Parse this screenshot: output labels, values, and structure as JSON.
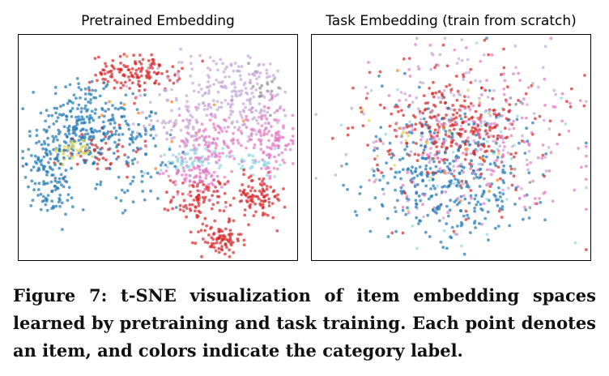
{
  "figure": {
    "caption": "Figure 7: t-SNE visualization of item embedding spaces learned by pretraining and task training. Each point denotes an item, and colors indicate the category label."
  },
  "chart_data": [
    {
      "type": "scatter",
      "title": "Pretrained Embedding",
      "xlabel": "",
      "ylabel": "",
      "axis_ticks": false,
      "grid": false,
      "legend": "none",
      "xlim": [
        0,
        1
      ],
      "ylim": [
        0,
        1
      ],
      "point_opacity": 0.7,
      "clusters": [
        {
          "category": "blue",
          "color": "#1f77b4",
          "count": 150,
          "cx": 0.22,
          "cy": 0.62,
          "sx": 0.065,
          "sy": 0.11
        },
        {
          "category": "blue",
          "color": "#1f77b4",
          "count": 130,
          "cx": 0.33,
          "cy": 0.57,
          "sx": 0.09,
          "sy": 0.07
        },
        {
          "category": "blue",
          "color": "#1f77b4",
          "count": 90,
          "cx": 0.1,
          "cy": 0.45,
          "sx": 0.04,
          "sy": 0.07
        },
        {
          "category": "blue",
          "color": "#1f77b4",
          "count": 50,
          "cx": 0.12,
          "cy": 0.28,
          "sx": 0.04,
          "sy": 0.05
        },
        {
          "category": "blue",
          "color": "#1f77b4",
          "count": 45,
          "cx": 0.44,
          "cy": 0.36,
          "sx": 0.07,
          "sy": 0.06
        },
        {
          "category": "red",
          "color": "#d62728",
          "count": 130,
          "cx": 0.42,
          "cy": 0.83,
          "sx": 0.08,
          "sy": 0.04
        },
        {
          "category": "red",
          "color": "#d62728",
          "count": 90,
          "cx": 0.65,
          "cy": 0.27,
          "sx": 0.05,
          "sy": 0.05
        },
        {
          "category": "red",
          "color": "#d62728",
          "count": 95,
          "cx": 0.86,
          "cy": 0.28,
          "sx": 0.05,
          "sy": 0.05
        },
        {
          "category": "red",
          "color": "#d62728",
          "count": 80,
          "cx": 0.72,
          "cy": 0.09,
          "sx": 0.04,
          "sy": 0.035
        },
        {
          "category": "red",
          "color": "#d62728",
          "count": 50,
          "cx": 0.3,
          "cy": 0.49,
          "sx": 0.07,
          "sy": 0.06
        },
        {
          "category": "lavender",
          "color": "#c5a6d6",
          "count": 130,
          "cx": 0.7,
          "cy": 0.75,
          "sx": 0.1,
          "sy": 0.09
        },
        {
          "category": "lavender",
          "color": "#c5a6d6",
          "count": 100,
          "cx": 0.86,
          "cy": 0.72,
          "sx": 0.06,
          "sy": 0.09
        },
        {
          "category": "lavender",
          "color": "#c5a6d6",
          "count": 70,
          "cx": 0.57,
          "cy": 0.6,
          "sx": 0.07,
          "sy": 0.07
        },
        {
          "category": "pink",
          "color": "#e377c2",
          "count": 110,
          "cx": 0.7,
          "cy": 0.53,
          "sx": 0.06,
          "sy": 0.07
        },
        {
          "category": "pink",
          "color": "#e377c2",
          "count": 110,
          "cx": 0.9,
          "cy": 0.53,
          "sx": 0.05,
          "sy": 0.08
        },
        {
          "category": "pink",
          "color": "#e377c2",
          "count": 70,
          "cx": 0.64,
          "cy": 0.38,
          "sx": 0.05,
          "sy": 0.05
        },
        {
          "category": "cyan",
          "color": "#8fd8e6",
          "count": 60,
          "cx": 0.63,
          "cy": 0.45,
          "sx": 0.06,
          "sy": 0.035
        },
        {
          "category": "cyan",
          "color": "#8fd8e6",
          "count": 30,
          "cx": 0.86,
          "cy": 0.42,
          "sx": 0.04,
          "sy": 0.03
        },
        {
          "category": "yellow",
          "color": "#d9d562",
          "count": 40,
          "cx": 0.2,
          "cy": 0.49,
          "sx": 0.035,
          "sy": 0.025
        },
        {
          "category": "gray",
          "color": "#8c8c8c",
          "count": 14,
          "cx": 0.88,
          "cy": 0.79,
          "sx": 0.04,
          "sy": 0.06
        },
        {
          "category": "orange",
          "color": "#ff7f0e",
          "count": 12,
          "cx": 0.5,
          "cy": 0.62,
          "sx": 0.12,
          "sy": 0.12
        }
      ]
    },
    {
      "type": "scatter",
      "title": "Task Embedding (train from scratch)",
      "xlabel": "",
      "ylabel": "",
      "axis_ticks": false,
      "grid": false,
      "legend": "none",
      "xlim": [
        0,
        1
      ],
      "ylim": [
        0,
        1
      ],
      "point_opacity": 0.7,
      "clusters": [
        {
          "category": "blue",
          "color": "#1f77b4",
          "count": 170,
          "cx": 0.42,
          "cy": 0.37,
          "sx": 0.13,
          "sy": 0.13
        },
        {
          "category": "blue",
          "color": "#1f77b4",
          "count": 120,
          "cx": 0.55,
          "cy": 0.3,
          "sx": 0.15,
          "sy": 0.11
        },
        {
          "category": "blue",
          "color": "#1f77b4",
          "count": 60,
          "cx": 0.5,
          "cy": 0.5,
          "sx": 0.2,
          "sy": 0.18
        },
        {
          "category": "red",
          "color": "#d62728",
          "count": 230,
          "cx": 0.53,
          "cy": 0.58,
          "sx": 0.17,
          "sy": 0.16
        },
        {
          "category": "red",
          "color": "#d62728",
          "count": 80,
          "cx": 0.55,
          "cy": 0.6,
          "sx": 0.07,
          "sy": 0.06
        },
        {
          "category": "pink",
          "color": "#e377c2",
          "count": 170,
          "cx": 0.6,
          "cy": 0.5,
          "sx": 0.2,
          "sy": 0.19
        },
        {
          "category": "lavender",
          "color": "#c5a6d6",
          "count": 150,
          "cx": 0.55,
          "cy": 0.62,
          "sx": 0.18,
          "sy": 0.18
        },
        {
          "category": "cyan",
          "color": "#8fd8e6",
          "count": 45,
          "cx": 0.5,
          "cy": 0.45,
          "sx": 0.2,
          "sy": 0.2
        },
        {
          "category": "yellow",
          "color": "#d9d562",
          "count": 20,
          "cx": 0.45,
          "cy": 0.45,
          "sx": 0.15,
          "sy": 0.15
        },
        {
          "category": "gray",
          "color": "#8c8c8c",
          "count": 15,
          "cx": 0.5,
          "cy": 0.5,
          "sx": 0.2,
          "sy": 0.2
        },
        {
          "category": "orange",
          "color": "#ff7f0e",
          "count": 15,
          "cx": 0.5,
          "cy": 0.55,
          "sx": 0.15,
          "sy": 0.15
        }
      ]
    }
  ]
}
